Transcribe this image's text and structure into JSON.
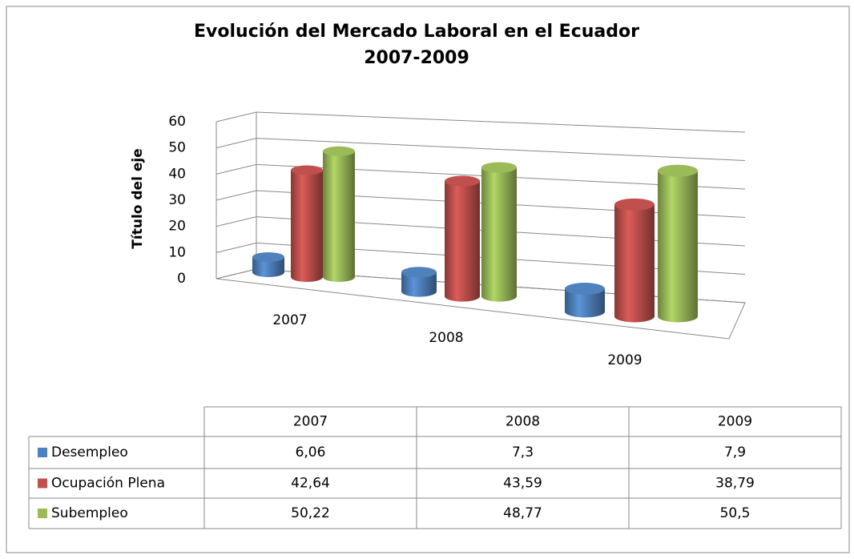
{
  "chart_data": {
    "type": "bar3d",
    "title": "Evolución del Mercado Laboral en el Ecuador",
    "subtitle": "2007-2009",
    "y_label": "Título del eje",
    "categories": [
      "2007",
      "2008",
      "2009"
    ],
    "ylim": [
      0,
      60
    ],
    "yticks": [
      0,
      10,
      20,
      30,
      40,
      50,
      60
    ],
    "grid": true,
    "series": [
      {
        "name": "Desempleo",
        "color": "#4f81bd",
        "values": [
          6.06,
          7.3,
          7.9
        ],
        "value_labels": [
          "6,06",
          "7,3",
          "7,9"
        ]
      },
      {
        "name": "Ocupación Plena",
        "color": "#c0504d",
        "values": [
          42.64,
          43.59,
          38.79
        ],
        "value_labels": [
          "42,64",
          "43,59",
          "38,79"
        ]
      },
      {
        "name": "Subempleo",
        "color": "#9bbb59",
        "values": [
          50.22,
          48.77,
          50.5
        ],
        "value_labels": [
          "50,22",
          "48,77",
          "50,5"
        ]
      }
    ]
  }
}
